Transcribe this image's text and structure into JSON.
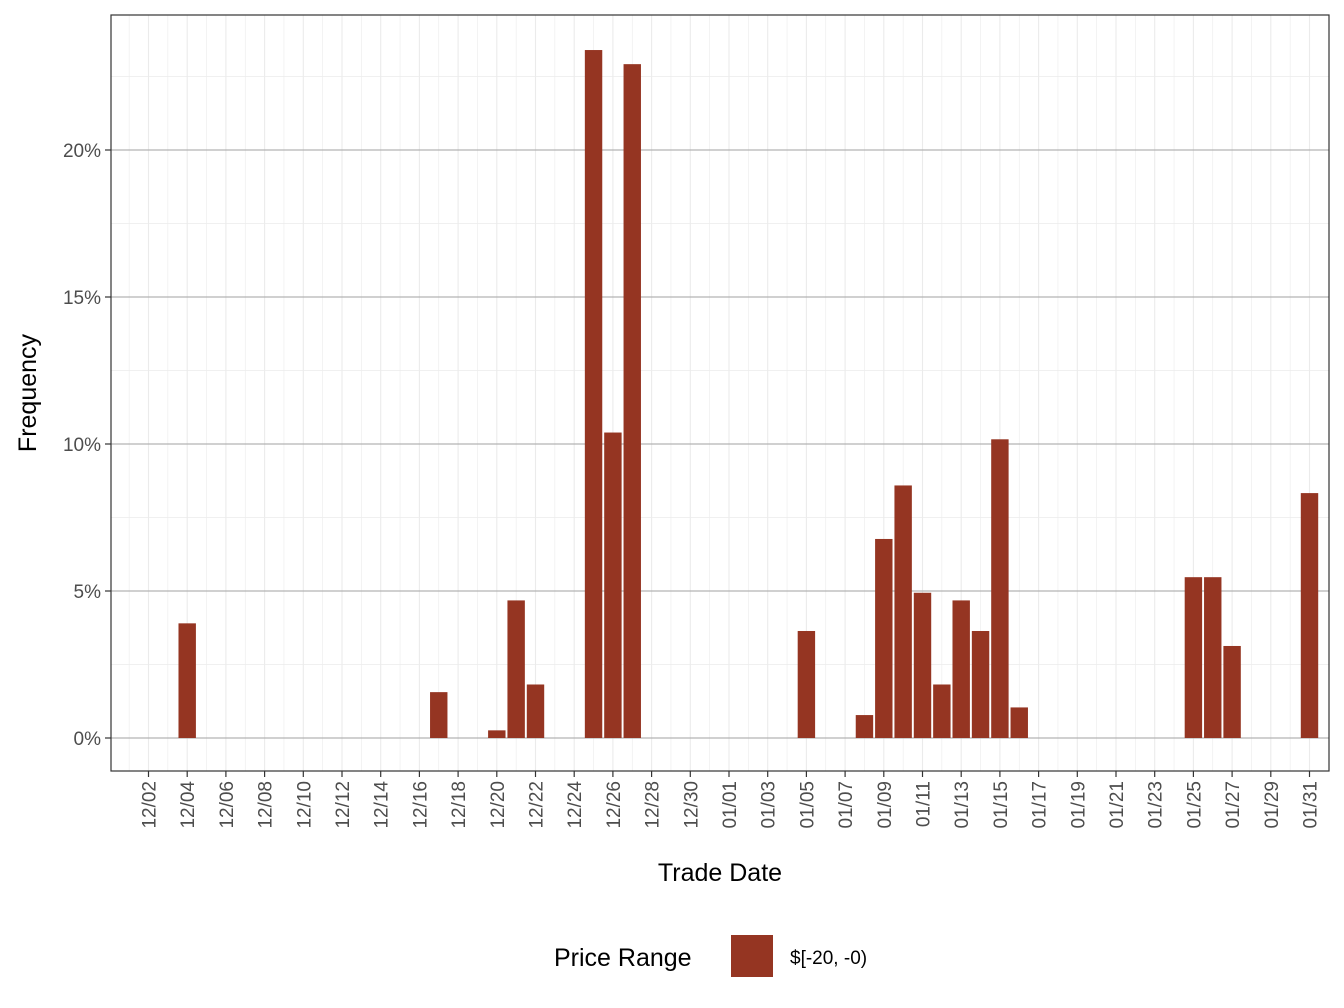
{
  "chart_data": {
    "type": "bar",
    "title": "",
    "xlabel": "Trade Date",
    "ylabel": "Frequency",
    "ylim": [
      -1.15,
      24.2
    ],
    "y_ticks": [
      0,
      5,
      10,
      15,
      20
    ],
    "y_tick_labels": [
      "0%",
      "5%",
      "10%",
      "15%",
      "20%"
    ],
    "x_tick_labels": [
      "12/02",
      "12/04",
      "12/06",
      "12/08",
      "12/10",
      "12/12",
      "12/14",
      "12/16",
      "12/18",
      "12/20",
      "12/22",
      "12/24",
      "12/26",
      "12/28",
      "12/30",
      "01/01",
      "01/03",
      "01/05",
      "01/07",
      "01/09",
      "01/11",
      "01/13",
      "01/15",
      "01/17",
      "01/19",
      "01/21",
      "01/23",
      "01/25",
      "01/27",
      "01/29",
      "01/31"
    ],
    "grid": true,
    "legend_position": "bottom",
    "series": [
      {
        "name": "$[-20, -0)",
        "color": "#953522",
        "points": [
          {
            "date": "12/04",
            "day_index": 2,
            "value": 3.9
          },
          {
            "date": "12/17",
            "day_index": 15,
            "value": 1.56
          },
          {
            "date": "12/20",
            "day_index": 18,
            "value": 0.26
          },
          {
            "date": "12/21",
            "day_index": 19,
            "value": 4.68
          },
          {
            "date": "12/22",
            "day_index": 20,
            "value": 1.82
          },
          {
            "date": "12/25",
            "day_index": 23,
            "value": 23.4
          },
          {
            "date": "12/26",
            "day_index": 24,
            "value": 10.39
          },
          {
            "date": "12/27",
            "day_index": 25,
            "value": 22.92
          },
          {
            "date": "01/05",
            "day_index": 34,
            "value": 3.64
          },
          {
            "date": "01/08",
            "day_index": 37,
            "value": 0.78
          },
          {
            "date": "01/09",
            "day_index": 38,
            "value": 6.77
          },
          {
            "date": "01/10",
            "day_index": 39,
            "value": 8.59
          },
          {
            "date": "01/11",
            "day_index": 40,
            "value": 4.94
          },
          {
            "date": "01/12",
            "day_index": 41,
            "value": 1.82
          },
          {
            "date": "01/13",
            "day_index": 42,
            "value": 4.68
          },
          {
            "date": "01/14",
            "day_index": 43,
            "value": 3.64
          },
          {
            "date": "01/15",
            "day_index": 44,
            "value": 10.16
          },
          {
            "date": "01/16",
            "day_index": 45,
            "value": 1.04
          },
          {
            "date": "01/25",
            "day_index": 54,
            "value": 5.47
          },
          {
            "date": "01/26",
            "day_index": 55,
            "value": 5.47
          },
          {
            "date": "01/27",
            "day_index": 56,
            "value": 3.13
          },
          {
            "date": "01/31",
            "day_index": 60,
            "value": 8.33
          }
        ]
      }
    ]
  },
  "legend": {
    "title": "Price Range",
    "items": [
      {
        "label": "$[-20, -0)",
        "color": "#953522"
      }
    ]
  },
  "axes": {
    "x_title": "Trade Date",
    "y_title": "Frequency"
  }
}
